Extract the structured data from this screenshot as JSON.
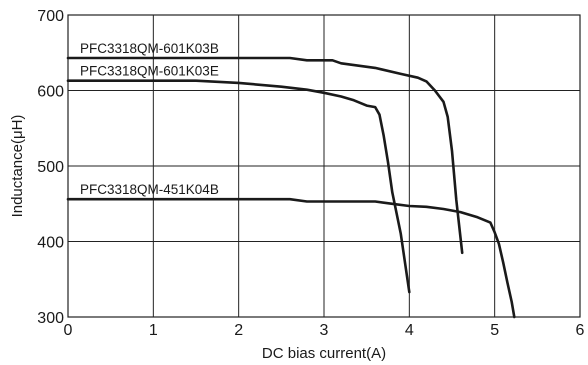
{
  "chart_data": {
    "type": "line",
    "title": "",
    "xlabel": "DC bias current(A)",
    "ylabel": "Inductance(μH)",
    "xlim": [
      0,
      6
    ],
    "ylim": [
      300,
      700
    ],
    "x_ticks": [
      0,
      1,
      2,
      3,
      4,
      5,
      6
    ],
    "y_ticks": [
      300,
      400,
      500,
      600,
      700
    ],
    "grid": true,
    "series": [
      {
        "name": "PFC3318QM-601K03B",
        "points": [
          [
            0,
            643
          ],
          [
            1.0,
            643
          ],
          [
            2.0,
            643
          ],
          [
            2.6,
            643
          ],
          [
            2.8,
            640
          ],
          [
            3.1,
            640
          ],
          [
            3.2,
            636
          ],
          [
            3.6,
            630
          ],
          [
            3.9,
            622
          ],
          [
            4.1,
            617
          ],
          [
            4.2,
            612
          ],
          [
            4.3,
            600
          ],
          [
            4.4,
            585
          ],
          [
            4.45,
            565
          ],
          [
            4.5,
            520
          ],
          [
            4.55,
            455
          ],
          [
            4.62,
            385
          ]
        ]
      },
      {
        "name": "PFC3318QM-601K03E",
        "points": [
          [
            0,
            613
          ],
          [
            1.0,
            613
          ],
          [
            1.5,
            613
          ],
          [
            2.0,
            610
          ],
          [
            2.5,
            605
          ],
          [
            2.8,
            601
          ],
          [
            3.0,
            597
          ],
          [
            3.2,
            592
          ],
          [
            3.35,
            587
          ],
          [
            3.5,
            580
          ],
          [
            3.6,
            578
          ],
          [
            3.65,
            568
          ],
          [
            3.7,
            540
          ],
          [
            3.75,
            505
          ],
          [
            3.8,
            465
          ],
          [
            3.9,
            410
          ],
          [
            4.0,
            333
          ]
        ]
      },
      {
        "name": "PFC3318QM-451K04B",
        "points": [
          [
            0,
            456
          ],
          [
            1.0,
            456
          ],
          [
            2.0,
            456
          ],
          [
            2.6,
            456
          ],
          [
            2.8,
            453
          ],
          [
            3.0,
            453
          ],
          [
            3.6,
            453
          ],
          [
            3.8,
            450
          ],
          [
            4.0,
            447
          ],
          [
            4.2,
            446
          ],
          [
            4.4,
            443
          ],
          [
            4.6,
            439
          ],
          [
            4.8,
            432
          ],
          [
            4.95,
            425
          ],
          [
            5.0,
            412
          ],
          [
            5.05,
            397
          ],
          [
            5.1,
            372
          ],
          [
            5.15,
            345
          ],
          [
            5.2,
            320
          ],
          [
            5.23,
            300
          ]
        ]
      }
    ],
    "annotations": [
      {
        "text": "PFC3318QM-601K03B",
        "series": 0
      },
      {
        "text": "PFC3318QM-601K03E",
        "series": 1
      },
      {
        "text": "PFC3318QM-451K04B",
        "series": 2
      }
    ]
  }
}
